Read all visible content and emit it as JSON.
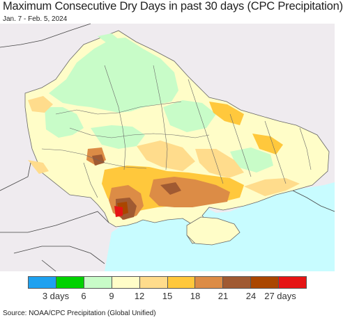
{
  "title": "Maximum Consecutive Dry Days in past 30 days (CPC Precipitation)",
  "date_range": "Jan. 7 - Feb. 5, 2024",
  "source": "Source: NOAA/CPC Precipitation (Global Unified)",
  "legend": {
    "colors": [
      "#1ea1f0",
      "#00d200",
      "#c8fcc8",
      "#fffdc8",
      "#ffdc8c",
      "#ffc83c",
      "#dc8c46",
      "#a05a32",
      "#aa4600",
      "#e61414"
    ],
    "tick_labels": [
      "3 days",
      "6",
      "9",
      "12",
      "15",
      "18",
      "21",
      "24",
      "27 days"
    ]
  },
  "map_colors": {
    "background": "#efebef",
    "sea": "#c8fcff",
    "green": "#c8fcc8",
    "light_yellow": "#fffdc8",
    "tan": "#ffdc8c",
    "orange": "#ffc83c",
    "brown": "#dc8c46",
    "dark_brown": "#a05a32",
    "red": "#e61414"
  }
}
